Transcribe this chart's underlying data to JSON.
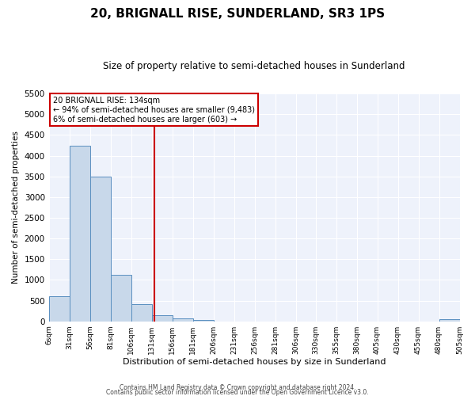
{
  "title": "20, BRIGNALL RISE, SUNDERLAND, SR3 1PS",
  "subtitle": "Size of property relative to semi-detached houses in Sunderland",
  "xlabel": "Distribution of semi-detached houses by size in Sunderland",
  "ylabel": "Number of semi-detached properties",
  "footer_line1": "Contains HM Land Registry data © Crown copyright and database right 2024.",
  "footer_line2": "Contains public sector information licensed under the Open Government Licence v3.0.",
  "bin_edges": [
    6,
    31,
    56,
    81,
    106,
    131,
    156,
    181,
    206,
    231,
    256,
    281,
    306,
    330,
    355,
    380,
    405,
    430,
    455,
    480,
    505
  ],
  "bin_counts": [
    600,
    4230,
    3500,
    1120,
    420,
    150,
    75,
    30,
    0,
    0,
    0,
    0,
    0,
    0,
    0,
    0,
    0,
    0,
    0,
    45
  ],
  "property_size": 134,
  "annotation_title": "20 BRIGNALL RISE: 134sqm",
  "annotation_line1": "← 94% of semi-detached houses are smaller (9,483)",
  "annotation_line2": "6% of semi-detached houses are larger (603) →",
  "bar_color": "#c8d8ea",
  "bar_edge_color": "#5a8fc0",
  "vline_color": "#cc0000",
  "annotation_box_edge_color": "#cc0000",
  "ylim": [
    0,
    5500
  ],
  "yticks": [
    0,
    500,
    1000,
    1500,
    2000,
    2500,
    3000,
    3500,
    4000,
    4500,
    5000,
    5500
  ],
  "background_color": "#eef2fb",
  "grid_color": "#ffffff",
  "title_fontsize": 11,
  "subtitle_fontsize": 8.5
}
